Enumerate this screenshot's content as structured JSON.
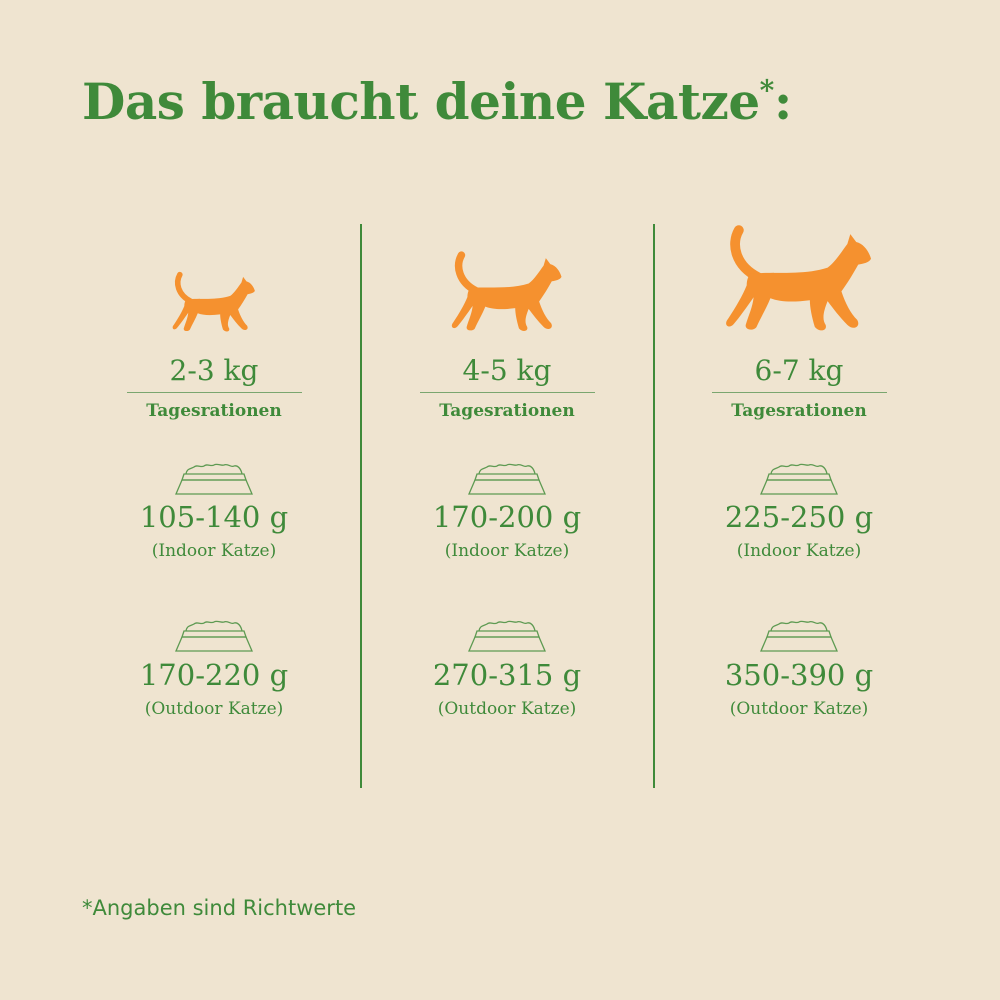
{
  "title": {
    "text": "Das braucht deine Katze",
    "asterisk": "*",
    "colon": ":"
  },
  "colors": {
    "background": "#efe4d0",
    "green": "#3f8a3a",
    "orange": "#f5912f"
  },
  "columns": [
    {
      "weight": "2-3 kg",
      "label": "Tagesrationen",
      "indoor_amount": "105-140 g",
      "indoor_label": "(Indoor Katze)",
      "outdoor_amount": "170-220 g",
      "outdoor_label": "(Outdoor Katze)",
      "icon": "cat-small-icon"
    },
    {
      "weight": "4-5 kg",
      "label": "Tagesrationen",
      "indoor_amount": "170-200 g",
      "indoor_label": "(Indoor Katze)",
      "outdoor_amount": "270-315 g",
      "outdoor_label": "(Outdoor Katze)",
      "icon": "cat-medium-icon"
    },
    {
      "weight": "6-7 kg",
      "label": "Tagesrationen",
      "indoor_amount": "225-250 g",
      "indoor_label": "(Indoor Katze)",
      "outdoor_amount": "350-390 g",
      "outdoor_label": "(Outdoor Katze)",
      "icon": "cat-large-icon"
    }
  ],
  "footnote": "*Angaben sind Richtwerte"
}
